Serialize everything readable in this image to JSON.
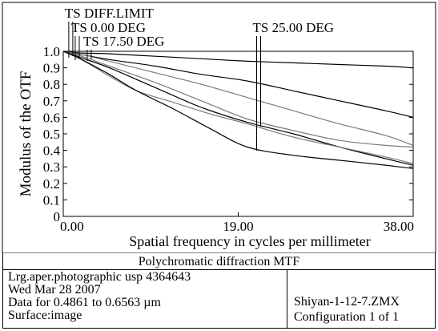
{
  "chart_data": {
    "type": "line",
    "ylabel": "Modulus of the OTF",
    "xlabel": "Spatial frequency in cycles per millimeter",
    "xlim": [
      0,
      38
    ],
    "ylim": [
      0,
      1
    ],
    "x_ticks": [
      "0.00",
      "19.00",
      "38.00"
    ],
    "y_ticks": [
      "0",
      "0.1",
      "0.2",
      "0.3",
      "0.4",
      "0.5",
      "0.6",
      "0.7",
      "0.8",
      "0.9",
      "1.0"
    ],
    "grid": false,
    "legend_labels": [
      {
        "text": "TS DIFF.LIMIT",
        "x_at": 0.6
      },
      {
        "text": "TS 0.00 DEG",
        "x_at": 1.3
      },
      {
        "text": "TS 17.50 DEG",
        "x_at": 2.6
      },
      {
        "text": "TS 25.00 DEG",
        "x_at": 21.0
      }
    ],
    "series": [
      {
        "x": [
          0,
          2,
          5,
          10,
          15,
          20,
          25,
          30,
          35,
          38
        ],
        "y": [
          1.0,
          0.99,
          0.985,
          0.97,
          0.955,
          0.94,
          0.93,
          0.92,
          0.91,
          0.9
        ]
      },
      {
        "x": [
          0,
          2,
          5,
          10,
          15,
          20,
          25,
          30,
          35,
          38
        ],
        "y": [
          1.0,
          0.98,
          0.95,
          0.91,
          0.86,
          0.82,
          0.76,
          0.7,
          0.64,
          0.6
        ]
      },
      {
        "x": [
          0,
          2,
          5,
          10,
          15,
          20,
          25,
          30,
          35,
          38
        ],
        "y": [
          1.0,
          0.98,
          0.94,
          0.87,
          0.8,
          0.72,
          0.64,
          0.56,
          0.49,
          0.43
        ]
      },
      {
        "x": [
          0,
          2,
          5,
          10,
          15,
          20,
          25,
          30,
          35,
          38
        ],
        "y": [
          1.0,
          0.97,
          0.91,
          0.81,
          0.7,
          0.59,
          0.52,
          0.46,
          0.43,
          0.42
        ]
      },
      {
        "x": [
          0,
          2,
          5,
          10,
          15,
          20,
          25,
          30,
          35,
          38
        ],
        "y": [
          1.0,
          0.96,
          0.9,
          0.78,
          0.66,
          0.57,
          0.5,
          0.42,
          0.35,
          0.31
        ]
      },
      {
        "x": [
          0,
          2,
          5,
          8,
          12,
          16,
          20,
          25,
          30,
          35,
          38
        ],
        "y": [
          1.0,
          0.95,
          0.85,
          0.76,
          0.69,
          0.62,
          0.56,
          0.48,
          0.42,
          0.36,
          0.32
        ]
      },
      {
        "x": [
          0,
          2,
          5,
          8,
          12,
          16,
          20,
          25,
          30,
          35,
          38
        ],
        "y": [
          1.0,
          0.95,
          0.86,
          0.76,
          0.65,
          0.53,
          0.42,
          0.37,
          0.34,
          0.31,
          0.29
        ]
      }
    ]
  },
  "info": {
    "caption": "Polychromatic diffraction MTF",
    "lines": [
      "Lrg.aper.photographic usp 4364643",
      "Wed Mar 28 2007",
      "Data for 0.4861 to 0.6563 µm",
      "Surface:image"
    ],
    "file": "Shiyan-1-12-7.ZMX",
    "config": "Configuration 1 of 1"
  }
}
